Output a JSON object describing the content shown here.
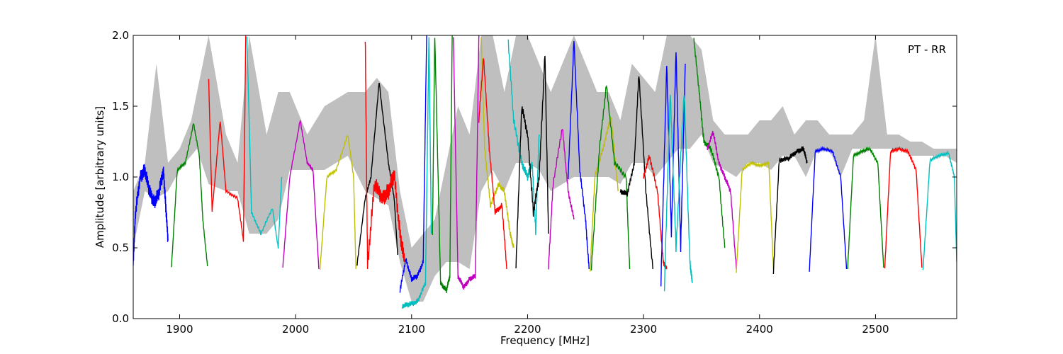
{
  "chart_data": {
    "type": "line",
    "title": "",
    "annotation": "PT - RR",
    "xlabel": "Frequency [MHz]",
    "ylabel": "Amplitude [arbitrary units]",
    "xlim": [
      1860,
      2570
    ],
    "ylim": [
      0.0,
      2.0
    ],
    "xticks": [
      1900,
      2000,
      2100,
      2200,
      2300,
      2400,
      2500
    ],
    "xtick_labels": [
      "1900",
      "2000",
      "2100",
      "2200",
      "2300",
      "2400",
      "2500"
    ],
    "yticks": [
      0.0,
      0.5,
      1.0,
      1.5,
      2.0
    ],
    "ytick_labels": [
      "0.0",
      "0.5",
      "1.0",
      "1.5",
      "2.0"
    ],
    "grid": false,
    "colors": {
      "envelope": "#bfbfbf",
      "b": "#0000ff",
      "g": "#008000",
      "r": "#ff0000",
      "c": "#00bfbf",
      "m": "#bf00bf",
      "y": "#bfbf00",
      "k": "#000000"
    },
    "background_envelope": {
      "x": [
        1860,
        1870,
        1880,
        1890,
        1900,
        1910,
        1915,
        1925,
        1940,
        1950,
        1960,
        1975,
        1985,
        1995,
        2010,
        2025,
        2045,
        2060,
        2070,
        2080,
        2090,
        2100,
        2110,
        2120,
        2130,
        2140,
        2150,
        2160,
        2170,
        2180,
        2190,
        2200,
        2210,
        2220,
        2230,
        2240,
        2250,
        2260,
        2270,
        2280,
        2290,
        2300,
        2310,
        2320,
        2330,
        2340,
        2350,
        2360,
        2370,
        2380,
        2390,
        2400,
        2410,
        2420,
        2430,
        2440,
        2450,
        2460,
        2470,
        2480,
        2490,
        2500,
        2510,
        2520,
        2530,
        2540,
        2550,
        2560,
        2570
      ],
      "y_low": [
        0.5,
        0.9,
        0.85,
        0.9,
        1.05,
        1.15,
        1.2,
        0.95,
        0.9,
        0.9,
        0.6,
        0.6,
        0.7,
        1.05,
        1.05,
        1.05,
        1.15,
        0.9,
        0.85,
        0.8,
        0.4,
        0.12,
        0.12,
        0.3,
        0.4,
        0.4,
        0.35,
        0.9,
        1.05,
        0.9,
        1.1,
        1.1,
        1.05,
        0.9,
        0.95,
        1.0,
        1.0,
        1.0,
        1.0,
        0.95,
        1.1,
        1.1,
        1.0,
        1.1,
        1.2,
        1.2,
        1.3,
        1.1,
        1.05,
        1.0,
        1.1,
        1.1,
        1.05,
        1.15,
        1.15,
        1.0,
        1.2,
        1.2,
        1.0,
        1.2,
        1.2,
        1.2,
        1.2,
        1.2,
        1.15,
        1.15,
        1.15,
        1.15,
        1.1
      ],
      "y_high": [
        0.9,
        1.1,
        1.8,
        1.1,
        1.2,
        1.4,
        1.6,
        2.0,
        1.3,
        1.1,
        2.0,
        1.3,
        1.6,
        1.6,
        1.3,
        1.5,
        1.6,
        1.6,
        1.7,
        1.6,
        0.9,
        0.5,
        0.6,
        0.7,
        1.1,
        1.5,
        1.3,
        2.0,
        2.0,
        1.6,
        2.0,
        2.0,
        1.8,
        1.6,
        1.8,
        2.0,
        1.8,
        1.6,
        1.6,
        1.4,
        1.8,
        1.7,
        1.6,
        2.0,
        2.0,
        2.0,
        1.9,
        1.4,
        1.3,
        1.3,
        1.3,
        1.4,
        1.4,
        1.5,
        1.3,
        1.4,
        1.4,
        1.3,
        1.3,
        1.3,
        1.4,
        2.0,
        1.3,
        1.3,
        1.25,
        1.25,
        1.2,
        1.2,
        1.2
      ]
    },
    "series": [
      {
        "color": "b",
        "x": [
          1860,
          1862,
          1866,
          1870,
          1874,
          1878,
          1882,
          1886,
          1888,
          1890
        ],
        "y": [
          0.4,
          0.75,
          1.0,
          1.05,
          0.9,
          0.82,
          0.88,
          1.05,
          0.8,
          0.55
        ],
        "noise": 0.05
      },
      {
        "color": "g",
        "x": [
          1893,
          1898,
          1905,
          1912,
          1917,
          1920,
          1924
        ],
        "y": [
          0.37,
          1.05,
          1.1,
          1.38,
          1.15,
          0.7,
          0.37
        ],
        "noise": 0.01
      },
      {
        "color": "r",
        "x": [
          1925,
          1928,
          1935,
          1940,
          1950,
          1955,
          1957
        ],
        "y": [
          1.7,
          0.76,
          1.4,
          0.9,
          0.85,
          0.55,
          2.0
        ],
        "noise": 0.01
      },
      {
        "color": "c",
        "x": [
          1958,
          1962,
          1970,
          1980,
          1985,
          1988
        ],
        "y": [
          2.0,
          0.75,
          0.6,
          0.78,
          0.5,
          1.0
        ],
        "noise": 0.01
      },
      {
        "color": "m",
        "x": [
          1989,
          1995,
          2004,
          2010,
          2015,
          2020
        ],
        "y": [
          0.37,
          1.0,
          1.4,
          1.1,
          1.05,
          0.35
        ],
        "noise": 0.01
      },
      {
        "color": "y",
        "x": [
          2021,
          2027,
          2035,
          2045,
          2050,
          2052
        ],
        "y": [
          0.35,
          1.0,
          1.05,
          1.3,
          1.0,
          0.35
        ],
        "noise": 0.01
      },
      {
        "color": "k",
        "x": [
          2053,
          2060,
          2065,
          2072,
          2080,
          2085,
          2088
        ],
        "y": [
          0.38,
          0.85,
          1.0,
          1.67,
          1.1,
          0.85,
          0.45
        ],
        "noise": 0.01
      },
      {
        "color": "r",
        "x": [
          2060,
          2062,
          2068,
          2075,
          2080,
          2085,
          2090,
          2094
        ],
        "y": [
          2.0,
          0.38,
          0.95,
          0.85,
          0.9,
          1.02,
          0.6,
          0.4
        ],
        "noise": 0.06
      },
      {
        "color": "b",
        "x": [
          2090,
          2095,
          2100,
          2105,
          2110,
          2113
        ],
        "y": [
          0.2,
          0.42,
          0.28,
          0.3,
          0.4,
          2.0
        ],
        "noise": 0.02
      },
      {
        "color": "c",
        "x": [
          2092,
          2098,
          2105,
          2112,
          2115,
          2117
        ],
        "y": [
          0.09,
          0.1,
          0.12,
          0.25,
          2.0,
          0.6
        ],
        "noise": 0.02
      },
      {
        "color": "g",
        "x": [
          2118,
          2120,
          2125,
          2130,
          2133,
          2135
        ],
        "y": [
          0.6,
          2.0,
          0.25,
          0.2,
          0.3,
          2.0
        ],
        "noise": 0.02
      },
      {
        "color": "m",
        "x": [
          2136,
          2140,
          2145,
          2150,
          2155,
          2158
        ],
        "y": [
          2.0,
          0.3,
          0.22,
          0.28,
          0.3,
          2.0
        ],
        "noise": 0.02
      },
      {
        "color": "y",
        "x": [
          2160,
          2163,
          2168,
          2175,
          2180,
          2185,
          2188
        ],
        "y": [
          2.0,
          1.2,
          0.8,
          0.95,
          0.9,
          0.6,
          0.5
        ],
        "noise": 0.02
      },
      {
        "color": "r",
        "x": [
          2158,
          2162,
          2167,
          2172,
          2178,
          2182
        ],
        "y": [
          1.4,
          1.85,
          1.2,
          0.75,
          0.8,
          0.35
        ],
        "noise": 0.02
      },
      {
        "color": "c",
        "x": [
          2183,
          2188,
          2195,
          2200,
          2204,
          2207,
          2210
        ],
        "y": [
          2.0,
          1.4,
          1.1,
          1.0,
          1.1,
          0.62,
          1.3
        ],
        "noise": 0.03
      },
      {
        "color": "k",
        "x": [
          2190,
          2195,
          2200,
          2205,
          2210,
          2215,
          2218
        ],
        "y": [
          0.37,
          1.5,
          1.3,
          0.75,
          1.0,
          1.87,
          0.6
        ],
        "noise": 0.03
      },
      {
        "color": "m",
        "x": [
          2218,
          2222,
          2230,
          2235,
          2240
        ],
        "y": [
          0.36,
          0.95,
          1.35,
          0.9,
          0.7
        ],
        "noise": 0.02
      },
      {
        "color": "b",
        "x": [
          2235,
          2240,
          2245,
          2250,
          2253
        ],
        "y": [
          1.0,
          1.97,
          1.05,
          0.7,
          0.35
        ],
        "noise": 0.02
      },
      {
        "color": "y",
        "x": [
          2254,
          2258,
          2265,
          2272,
          2278
        ],
        "y": [
          0.35,
          1.0,
          1.2,
          1.43,
          0.9
        ],
        "noise": 0.02
      },
      {
        "color": "g",
        "x": [
          2255,
          2262,
          2268,
          2275,
          2285,
          2288
        ],
        "y": [
          0.36,
          1.2,
          1.65,
          1.1,
          1.0,
          0.35
        ],
        "noise": 0.02
      },
      {
        "color": "k",
        "x": [
          2280,
          2286,
          2292,
          2296,
          2302,
          2308
        ],
        "y": [
          0.9,
          0.88,
          1.1,
          1.73,
          0.9,
          0.35
        ],
        "noise": 0.02
      },
      {
        "color": "r",
        "x": [
          2300,
          2305,
          2312,
          2317,
          2320
        ],
        "y": [
          1.0,
          1.15,
          0.9,
          0.4,
          0.35
        ],
        "noise": 0.02
      },
      {
        "color": "b",
        "x": [
          2315,
          2320,
          2324,
          2328,
          2332,
          2336
        ],
        "y": [
          0.25,
          1.8,
          0.6,
          1.9,
          0.5,
          1.8
        ],
        "noise": 0.03
      },
      {
        "color": "c",
        "x": [
          2318,
          2323,
          2328,
          2335,
          2340,
          2342
        ],
        "y": [
          0.22,
          1.6,
          0.5,
          1.6,
          0.4,
          0.25
        ],
        "noise": 0.03
      },
      {
        "color": "g",
        "x": [
          2343,
          2348,
          2352,
          2358,
          2365,
          2370
        ],
        "y": [
          2.0,
          1.6,
          1.25,
          1.2,
          1.0,
          0.5
        ],
        "noise": 0.02
      },
      {
        "color": "m",
        "x": [
          2355,
          2360,
          2365,
          2370,
          2375,
          2380
        ],
        "y": [
          1.2,
          1.32,
          1.1,
          1.0,
          0.9,
          0.35
        ],
        "noise": 0.02
      },
      {
        "color": "y",
        "x": [
          2380,
          2385,
          2393,
          2400,
          2408,
          2412
        ],
        "y": [
          0.33,
          1.05,
          1.1,
          1.08,
          1.1,
          0.35
        ],
        "noise": 0.01
      },
      {
        "color": "k",
        "x": [
          2412,
          2417,
          2425,
          2432,
          2438,
          2441
        ],
        "y": [
          0.33,
          1.12,
          1.13,
          1.18,
          1.2,
          1.1
        ],
        "noise": 0.02
      },
      {
        "color": "b",
        "x": [
          2443,
          2448,
          2455,
          2463,
          2470,
          2475
        ],
        "y": [
          0.34,
          1.18,
          1.2,
          1.18,
          1.0,
          0.35
        ],
        "noise": 0.01
      },
      {
        "color": "g",
        "x": [
          2476,
          2481,
          2488,
          2495,
          2502,
          2507
        ],
        "y": [
          0.36,
          1.15,
          1.18,
          1.2,
          1.1,
          0.36
        ],
        "noise": 0.01
      },
      {
        "color": "r",
        "x": [
          2508,
          2513,
          2520,
          2528,
          2535,
          2540
        ],
        "y": [
          0.36,
          1.18,
          1.2,
          1.18,
          1.05,
          0.36
        ],
        "noise": 0.01
      },
      {
        "color": "c",
        "x": [
          2541,
          2547,
          2555,
          2563,
          2568,
          2570
        ],
        "y": [
          0.35,
          1.12,
          1.15,
          1.17,
          1.0,
          0.4
        ],
        "noise": 0.01
      }
    ]
  }
}
